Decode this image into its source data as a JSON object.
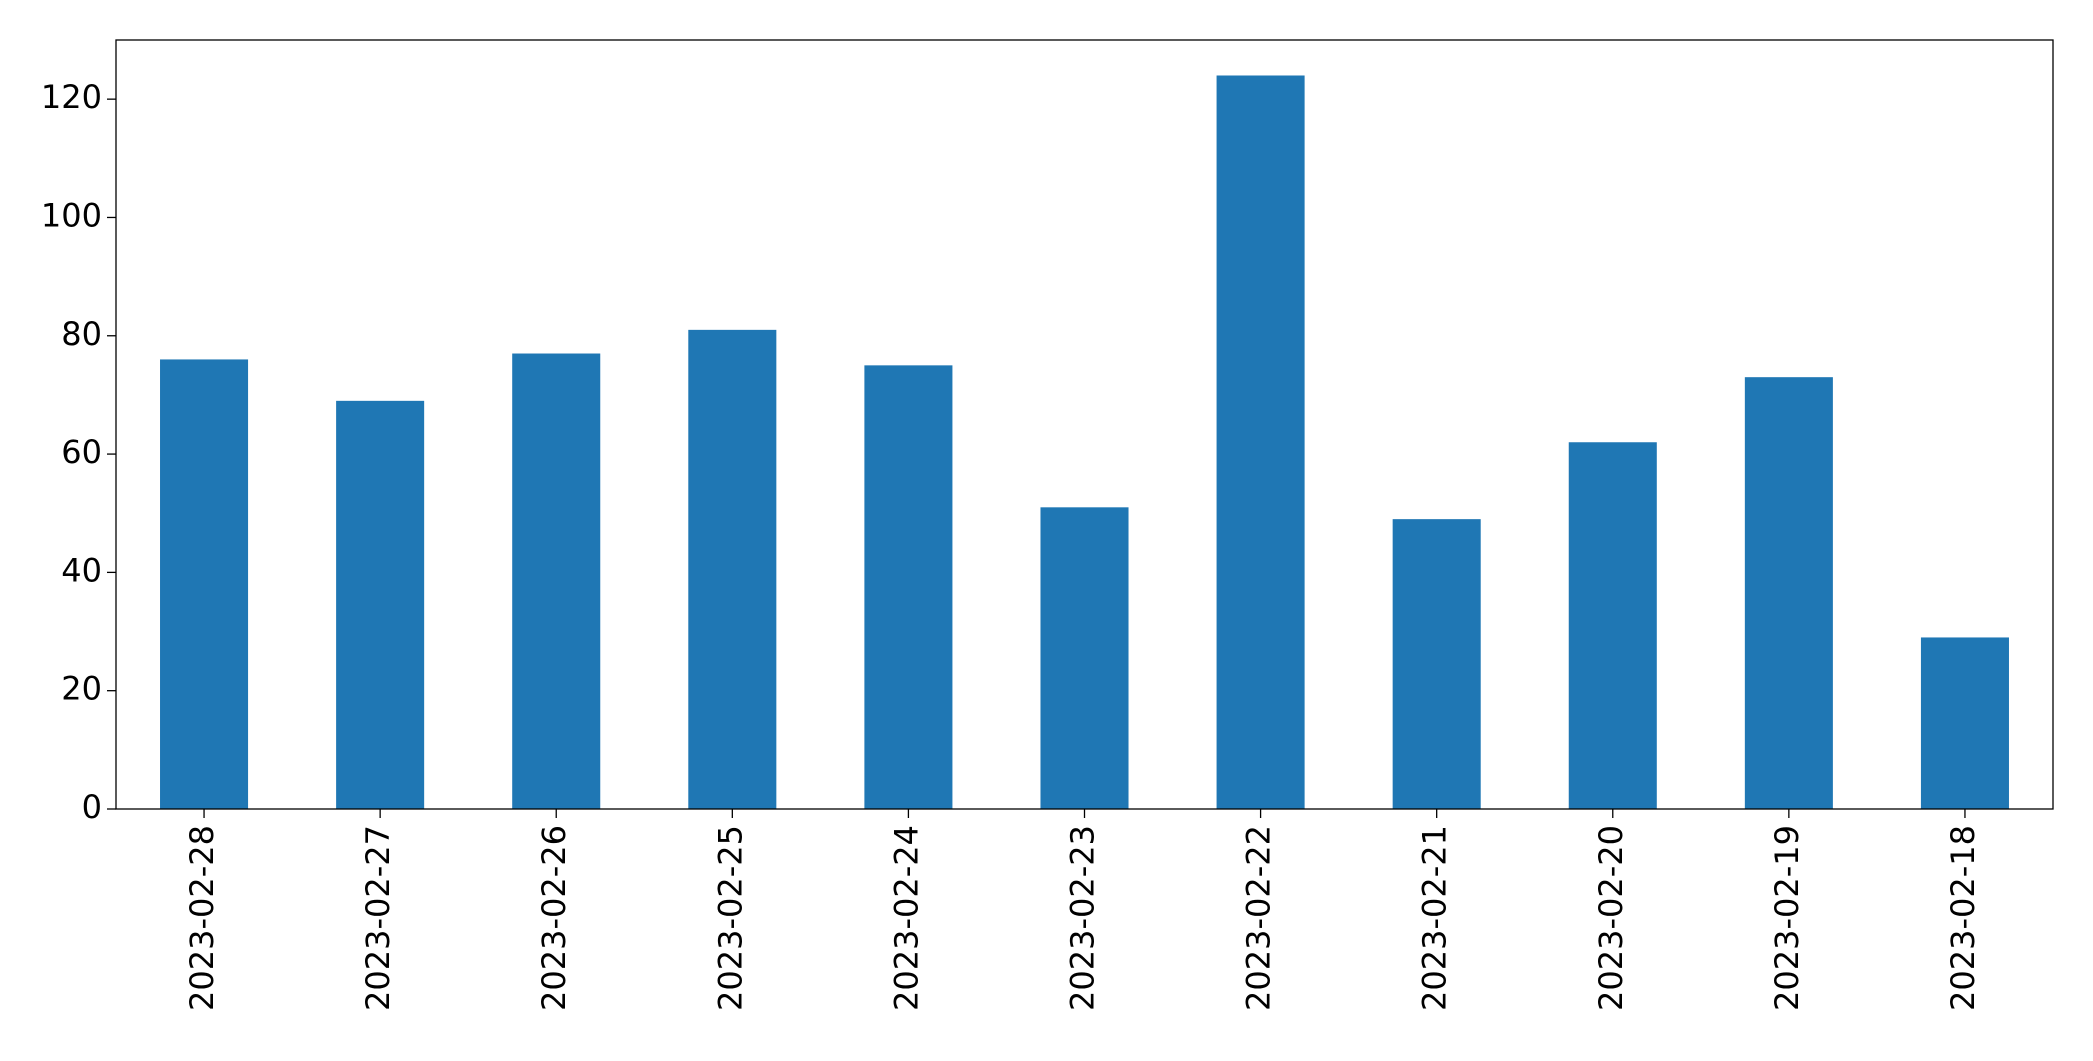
{
  "chart_data": {
    "type": "bar",
    "categories": [
      "2023-02-28",
      "2023-02-27",
      "2023-02-26",
      "2023-02-25",
      "2023-02-24",
      "2023-02-23",
      "2023-02-22",
      "2023-02-21",
      "2023-02-20",
      "2023-02-19",
      "2023-02-18"
    ],
    "values": [
      76,
      69,
      77,
      81,
      75,
      51,
      124,
      49,
      62,
      73,
      29
    ],
    "color": "#1f77b4",
    "ylim": [
      0,
      130
    ],
    "yticks": [
      0,
      20,
      40,
      60,
      80,
      100,
      120
    ],
    "grid": false
  }
}
